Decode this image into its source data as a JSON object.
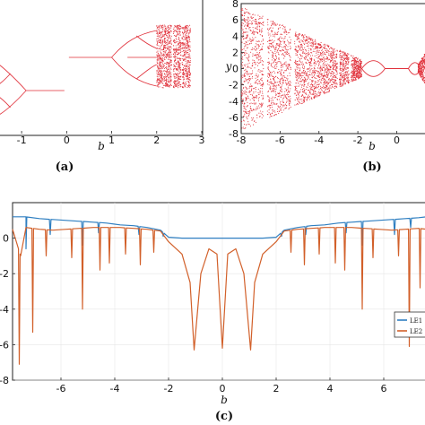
{
  "chart_data": [
    {
      "panel": "a",
      "type": "scatter",
      "caption": "(a)",
      "xlabel": "b",
      "ylabel": "",
      "xlim": [
        -1.5,
        3
      ],
      "xticks": [
        "-1",
        "0",
        "1",
        "2",
        "3"
      ],
      "xtick_values": [
        -1,
        0,
        1,
        2,
        3
      ],
      "series_color": "#e0303a"
    },
    {
      "panel": "b",
      "type": "scatter",
      "caption": "(b)",
      "xlabel": "b",
      "ylabel": "y",
      "xlim": [
        -8,
        1.5
      ],
      "ylim": [
        -8,
        8
      ],
      "xticks": [
        "-8",
        "-6",
        "-4",
        "-2",
        "0"
      ],
      "xtick_values": [
        -8,
        -6,
        -4,
        -2,
        0
      ],
      "yticks": [
        "8",
        "6",
        "4",
        "2",
        "0",
        "-2",
        "-4",
        "-6",
        "-8"
      ],
      "ytick_values": [
        8,
        6,
        4,
        2,
        0,
        -2,
        -4,
        -6,
        -8
      ],
      "series_color": "#e0303a"
    },
    {
      "panel": "c",
      "type": "line",
      "caption": "(c)",
      "xlabel": "b",
      "ylabel": "",
      "xlim": [
        -7.8,
        7.6
      ],
      "ylim": [
        -8,
        2
      ],
      "xticks": [
        "-6",
        "-4",
        "-2",
        "0",
        "2",
        "4",
        "6"
      ],
      "xtick_values": [
        -6,
        -4,
        -2,
        0,
        2,
        4,
        6
      ],
      "yticks": [
        "0",
        "-2",
        "-4",
        "-6",
        "-8"
      ],
      "ytick_values": [
        0,
        -2,
        -4,
        -6,
        -8
      ],
      "legend_position": "right",
      "series": [
        {
          "name": "LE1",
          "color": "#2f7fc1",
          "x": [
            -7.8,
            -7.3,
            -6.8,
            -6.3,
            -5.8,
            -5.3,
            -4.8,
            -4.3,
            -3.8,
            -3.3,
            -2.8,
            -2.3,
            -2.0,
            -1.5,
            -1.0,
            -0.5,
            0.0,
            0.5,
            1.0,
            1.5,
            2.0,
            2.3,
            2.8,
            3.3,
            3.8,
            4.3,
            4.8,
            5.3,
            5.8,
            6.3,
            6.8,
            7.3,
            7.6
          ],
          "y": [
            1.2,
            1.2,
            1.1,
            1.05,
            1.0,
            0.95,
            0.9,
            0.85,
            0.75,
            0.7,
            0.6,
            0.45,
            0.05,
            0.0,
            0.0,
            0.0,
            0.0,
            0.0,
            0.0,
            0.0,
            0.05,
            0.45,
            0.6,
            0.7,
            0.75,
            0.85,
            0.9,
            0.95,
            1.0,
            1.05,
            1.1,
            1.15,
            1.2
          ]
        },
        {
          "name": "LE2",
          "color": "#d2602a",
          "x": [
            -7.8,
            -7.5,
            -7.3,
            -6.8,
            -6.3,
            -5.8,
            -5.3,
            -4.8,
            -4.3,
            -3.8,
            -3.3,
            -2.8,
            -2.3,
            -2.0,
            -1.5,
            -1.2,
            -1.05,
            -0.8,
            -0.5,
            -0.2,
            0.0,
            0.2,
            0.5,
            0.8,
            1.05,
            1.2,
            1.5,
            2.0,
            2.3,
            2.8,
            3.3,
            3.8,
            4.3,
            4.8,
            5.3,
            5.8,
            6.3,
            6.8,
            7.3,
            7.6
          ],
          "y": [
            0.5,
            -1.0,
            0.6,
            0.5,
            0.45,
            0.5,
            0.55,
            0.6,
            0.6,
            0.6,
            0.55,
            0.5,
            0.4,
            -0.2,
            -0.9,
            -2.5,
            -6.3,
            -2.0,
            -0.6,
            -0.9,
            -6.2,
            -0.9,
            -0.6,
            -2.0,
            -6.3,
            -2.5,
            -0.9,
            -0.2,
            0.4,
            0.5,
            0.55,
            0.6,
            0.6,
            0.6,
            0.55,
            0.5,
            0.45,
            0.5,
            0.55,
            0.5
          ]
        }
      ],
      "dips": {
        "LE1": [
          [
            -7.3,
            -0.6
          ],
          [
            -6.4,
            0.2
          ],
          [
            -5.2,
            -0.4
          ],
          [
            -4.6,
            0.3
          ],
          [
            -3.1,
            0.2
          ],
          [
            -2.2,
            0.1
          ],
          [
            2.2,
            0.1
          ],
          [
            3.1,
            0.2
          ],
          [
            4.6,
            0.3
          ],
          [
            5.2,
            -0.4
          ],
          [
            6.4,
            0.2
          ],
          [
            7.0,
            0.6
          ]
        ],
        "LE2": [
          [
            -7.55,
            -7.1
          ],
          [
            -7.05,
            -5.3
          ],
          [
            -6.55,
            -1.0
          ],
          [
            -5.6,
            -1.1
          ],
          [
            -5.2,
            -4.0
          ],
          [
            -4.55,
            -1.8
          ],
          [
            -4.2,
            -1.4
          ],
          [
            -3.6,
            -0.9
          ],
          [
            -3.05,
            -1.5
          ],
          [
            -2.55,
            -0.8
          ],
          [
            -1.05,
            -6.3
          ],
          [
            0.0,
            -6.2
          ],
          [
            1.05,
            -6.3
          ],
          [
            2.55,
            -0.8
          ],
          [
            3.05,
            -1.5
          ],
          [
            3.6,
            -0.9
          ],
          [
            4.2,
            -1.4
          ],
          [
            4.55,
            -1.8
          ],
          [
            5.2,
            -4.0
          ],
          [
            5.6,
            -1.1
          ],
          [
            6.55,
            -1.0
          ],
          [
            6.95,
            -6.1
          ],
          [
            7.35,
            -2.8
          ]
        ]
      }
    }
  ]
}
